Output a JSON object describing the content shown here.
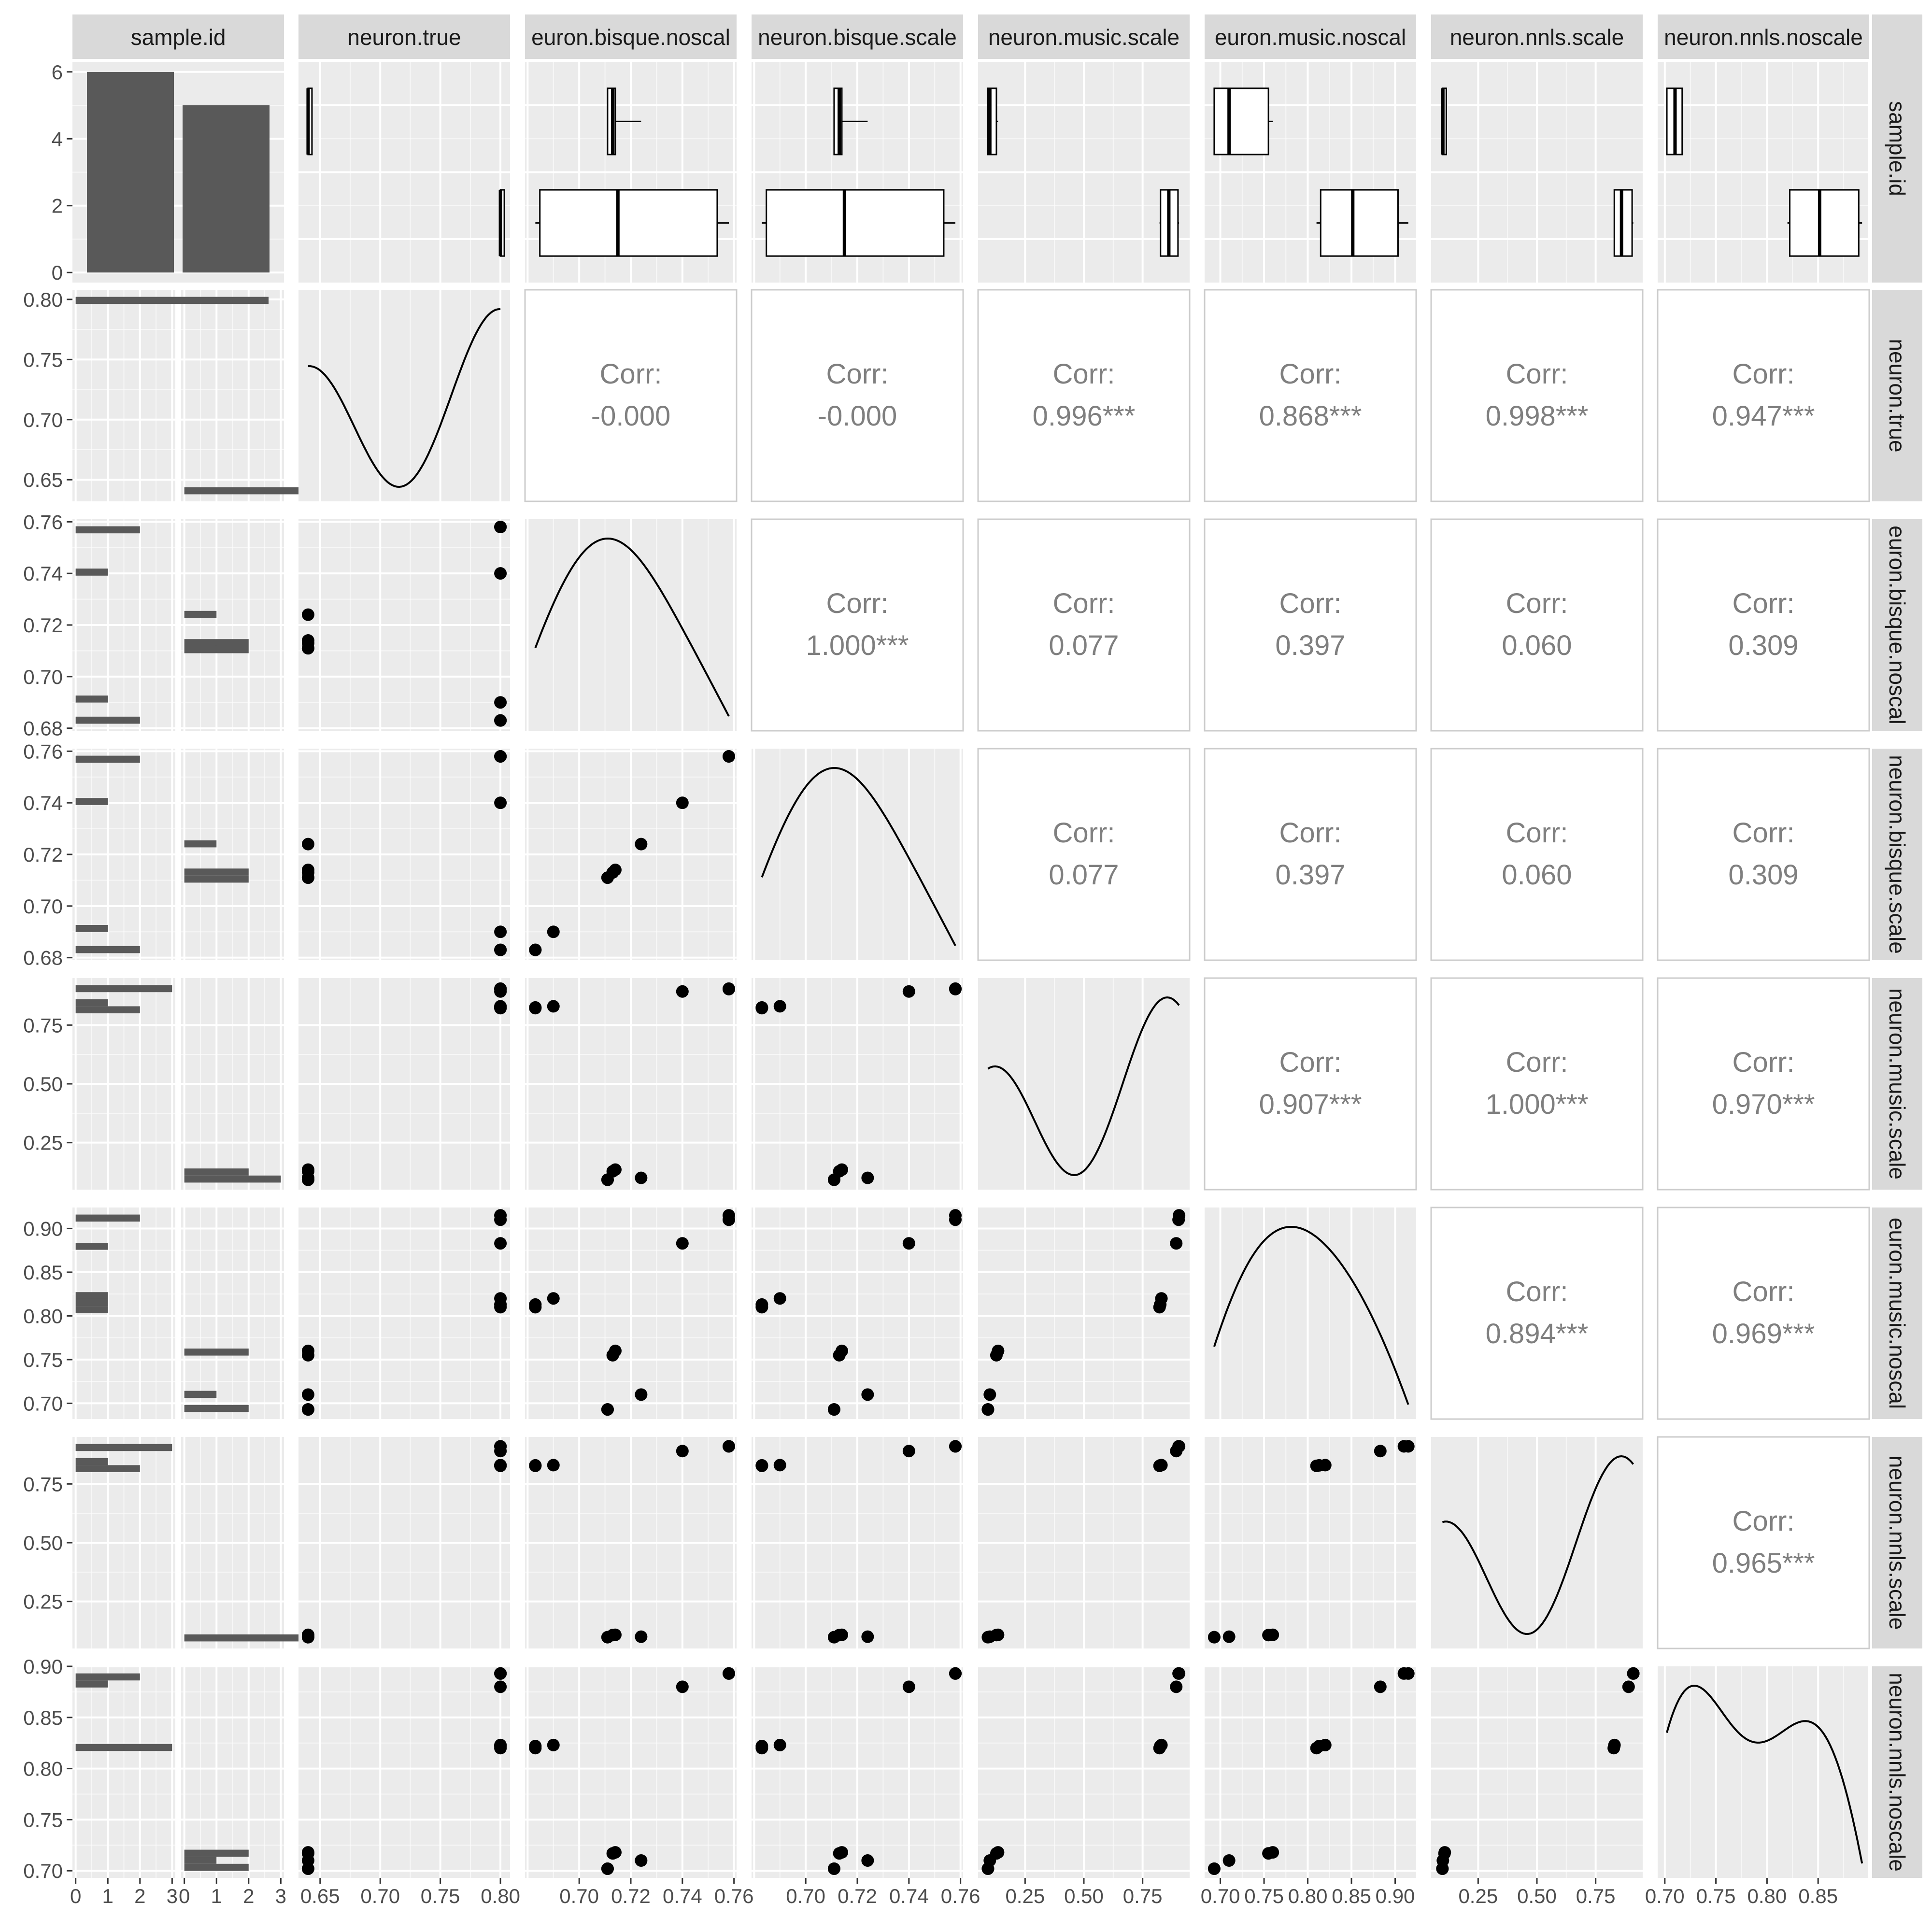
{
  "chart_data": {
    "type": "scatter-matrix",
    "variables": [
      "sample.id",
      "neuron.true",
      "neuron.bisque.noscale",
      "neuron.bisque.scale",
      "neuron.music.scale",
      "neuron.music.noscale",
      "neuron.nnls.scale",
      "neuron.nnls.noscale"
    ],
    "strip_labels": [
      "sample.id",
      "neuron.true",
      "euron.bisque.noscal",
      "neuron.bisque.scale",
      "neuron.music.scale",
      "euron.music.noscal",
      "neuron.nnls.scale",
      "neuron.nnls.noscale"
    ],
    "row_strip_labels": [
      "sample.id",
      "neuron.true",
      "euron.bisque.noscal",
      "neuron.bisque.scale",
      "neuron.music.scale",
      "euron.music.noscal",
      "neuron.nnls.scale",
      "neuron.nnls.noscale"
    ],
    "sample_groups": {
      "counts": [
        6,
        5
      ]
    },
    "groups": [
      1,
      1,
      1,
      1,
      1,
      1,
      2,
      2,
      2,
      2,
      2
    ],
    "observations": {
      "neuron.true": [
        0.8,
        0.8,
        0.8,
        0.8,
        0.8,
        0.8,
        0.64,
        0.64,
        0.64,
        0.64,
        0.64
      ],
      "neuron.bisque.noscale": [
        0.758,
        0.758,
        0.74,
        0.69,
        0.683,
        0.683,
        0.724,
        0.714,
        0.713,
        0.711,
        0.711
      ],
      "neuron.bisque.scale": [
        0.758,
        0.758,
        0.74,
        0.69,
        0.683,
        0.683,
        0.724,
        0.714,
        0.713,
        0.711,
        0.711
      ],
      "neuron.music.scale": [
        0.905,
        0.903,
        0.893,
        0.83,
        0.822,
        0.825,
        0.1,
        0.135,
        0.128,
        0.092,
        0.092
      ],
      "neuron.music.noscale": [
        0.915,
        0.91,
        0.883,
        0.82,
        0.81,
        0.813,
        0.71,
        0.76,
        0.755,
        0.693,
        0.693
      ],
      "neuron.nnls.scale": [
        0.91,
        0.91,
        0.89,
        0.83,
        0.827,
        0.829,
        0.1,
        0.108,
        0.107,
        0.098,
        0.098
      ],
      "neuron.nnls.noscale": [
        0.893,
        0.893,
        0.88,
        0.823,
        0.82,
        0.822,
        0.71,
        0.718,
        0.717,
        0.702,
        0.702
      ]
    },
    "axes": {
      "sample.id": {
        "ylim": [
          -0.3,
          6.3
        ],
        "ticks": [
          0,
          2,
          4,
          6
        ]
      },
      "neuron.true": {
        "lim": [
          0.632,
          0.808
        ],
        "ticks": [
          0.65,
          0.7,
          0.75,
          0.8
        ]
      },
      "neuron.bisque.noscale": {
        "lim": [
          0.679,
          0.761
        ],
        "ticks": [
          0.68,
          0.7,
          0.72,
          0.74,
          0.76
        ]
      },
      "neuron.bisque.scale": {
        "lim": [
          0.679,
          0.761
        ],
        "ticks": [
          0.68,
          0.7,
          0.72,
          0.74,
          0.76
        ]
      },
      "neuron.music.scale": {
        "lim": [
          0.05,
          0.95
        ],
        "ticks": [
          0.25,
          0.5,
          0.75
        ]
      },
      "neuron.music.noscale": {
        "lim": [
          0.682,
          0.924
        ],
        "ticks": [
          0.7,
          0.75,
          0.8,
          0.85,
          0.9
        ]
      },
      "neuron.nnls.scale": {
        "lim": [
          0.05,
          0.95
        ],
        "ticks": [
          0.25,
          0.5,
          0.75
        ]
      },
      "neuron.nnls.noscale": {
        "lim": [
          0.693,
          0.9
        ],
        "ticks": [
          0.7,
          0.75,
          0.8,
          0.85,
          0.9
        ]
      }
    },
    "x_tick_labels": {
      "sample.id": [
        "0",
        "1",
        "2",
        "3",
        "0",
        "1",
        "2",
        "3"
      ],
      "neuron.true": [
        "0.65",
        "0.70",
        "0.75",
        "0.80"
      ],
      "neuron.bisque.noscale": [
        "0.70",
        "0.72",
        "0.74",
        "0.76"
      ],
      "neuron.bisque.scale": [
        "0.70",
        "0.72",
        "0.74",
        "0.76"
      ],
      "neuron.music.scale": [
        "0.25",
        "0.50",
        "0.75"
      ],
      "neuron.music.noscale": [
        "0.70",
        "0.75",
        "0.80",
        "0.85",
        "0.90"
      ],
      "neuron.nnls.scale": [
        "0.25",
        "0.50",
        "0.75"
      ],
      "neuron.nnls.noscale": [
        "0.70",
        "0.75",
        "0.80",
        "0.85"
      ]
    },
    "y_tick_labels": {
      "sample.id": [
        "0",
        "2",
        "4",
        "6"
      ],
      "neuron.true": [
        "0.65",
        "0.70",
        "0.75",
        "0.80"
      ],
      "neuron.bisque.noscale": [
        "0.68",
        "0.70",
        "0.72",
        "0.74",
        "0.76"
      ],
      "neuron.bisque.scale": [
        "0.68",
        "0.70",
        "0.72",
        "0.74",
        "0.76"
      ],
      "neuron.music.scale": [
        "0.25",
        "0.50",
        "0.75"
      ],
      "neuron.music.noscale": [
        "0.70",
        "0.75",
        "0.80",
        "0.85",
        "0.90"
      ],
      "neuron.nnls.scale": [
        "0.25",
        "0.50",
        "0.75"
      ],
      "neuron.nnls.noscale": [
        "0.70",
        "0.75",
        "0.80",
        "0.85",
        "0.90"
      ]
    },
    "correlations": [
      {
        "row": "neuron.true",
        "col": "neuron.bisque.noscale",
        "label": "Corr:",
        "value": "-0.000"
      },
      {
        "row": "neuron.true",
        "col": "neuron.bisque.scale",
        "label": "Corr:",
        "value": "-0.000"
      },
      {
        "row": "neuron.true",
        "col": "neuron.music.scale",
        "label": "Corr:",
        "value": "0.996***"
      },
      {
        "row": "neuron.true",
        "col": "neuron.music.noscale",
        "label": "Corr:",
        "value": "0.868***"
      },
      {
        "row": "neuron.true",
        "col": "neuron.nnls.scale",
        "label": "Corr:",
        "value": "0.998***"
      },
      {
        "row": "neuron.true",
        "col": "neuron.nnls.noscale",
        "label": "Corr:",
        "value": "0.947***"
      },
      {
        "row": "neuron.bisque.noscale",
        "col": "neuron.bisque.scale",
        "label": "Corr:",
        "value": "1.000***"
      },
      {
        "row": "neuron.bisque.noscale",
        "col": "neuron.music.scale",
        "label": "Corr:",
        "value": "0.077"
      },
      {
        "row": "neuron.bisque.noscale",
        "col": "neuron.music.noscale",
        "label": "Corr:",
        "value": "0.397"
      },
      {
        "row": "neuron.bisque.noscale",
        "col": "neuron.nnls.scale",
        "label": "Corr:",
        "value": "0.060"
      },
      {
        "row": "neuron.bisque.noscale",
        "col": "neuron.nnls.noscale",
        "label": "Corr:",
        "value": "0.309"
      },
      {
        "row": "neuron.bisque.scale",
        "col": "neuron.music.scale",
        "label": "Corr:",
        "value": "0.077"
      },
      {
        "row": "neuron.bisque.scale",
        "col": "neuron.music.noscale",
        "label": "Corr:",
        "value": "0.397"
      },
      {
        "row": "neuron.bisque.scale",
        "col": "neuron.nnls.scale",
        "label": "Corr:",
        "value": "0.060"
      },
      {
        "row": "neuron.bisque.scale",
        "col": "neuron.nnls.noscale",
        "label": "Corr:",
        "value": "0.309"
      },
      {
        "row": "neuron.music.scale",
        "col": "neuron.music.noscale",
        "label": "Corr:",
        "value": "0.907***"
      },
      {
        "row": "neuron.music.scale",
        "col": "neuron.nnls.scale",
        "label": "Corr:",
        "value": "1.000***"
      },
      {
        "row": "neuron.music.scale",
        "col": "neuron.nnls.noscale",
        "label": "Corr:",
        "value": "0.970***"
      },
      {
        "row": "neuron.music.noscale",
        "col": "neuron.nnls.scale",
        "label": "Corr:",
        "value": "0.894***"
      },
      {
        "row": "neuron.music.noscale",
        "col": "neuron.nnls.noscale",
        "label": "Corr:",
        "value": "0.969***"
      },
      {
        "row": "neuron.nnls.scale",
        "col": "neuron.nnls.noscale",
        "label": "Corr:",
        "value": "0.965***"
      }
    ],
    "colors": {
      "panel_background": "#ebebeb",
      "grid": "#ffffff",
      "strip": "#d9d9d9",
      "bars": "#595959",
      "points": "#000000",
      "lines": "#000000",
      "corr_text": "#7f7f7f",
      "axis_text": "#4d4d4d",
      "strip_text": "#1a1a1a",
      "blank_panel_border": "#cccccc"
    }
  }
}
